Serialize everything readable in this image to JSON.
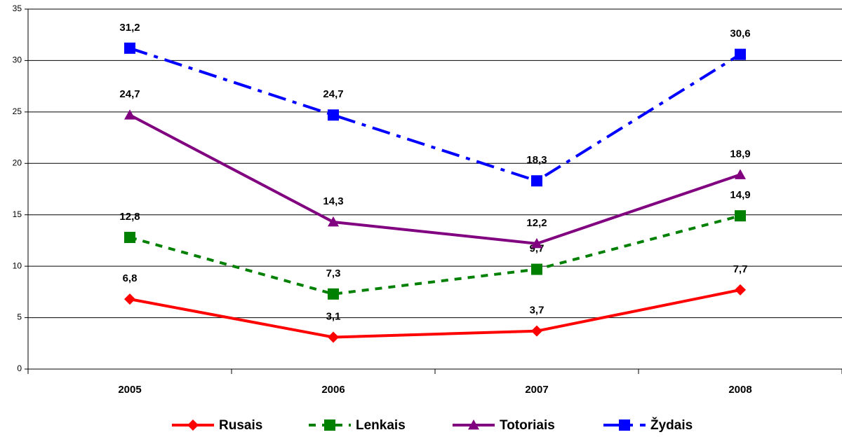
{
  "chart_data": {
    "type": "line",
    "categories": [
      "2005",
      "2006",
      "2007",
      "2008"
    ],
    "series": [
      {
        "name": "Rusais",
        "color": "#ff0000",
        "line_style": "solid",
        "marker": "diamond",
        "values": [
          6.8,
          3.1,
          3.7,
          7.7
        ],
        "value_labels": [
          "6,8",
          "3,1",
          "3,7",
          "7,7"
        ]
      },
      {
        "name": "Lenkais",
        "color": "#008000",
        "line_style": "dashed",
        "marker": "square",
        "values": [
          12.8,
          7.3,
          9.7,
          14.9
        ],
        "value_labels": [
          "12,8",
          "7,3",
          "9,7",
          "14,9"
        ]
      },
      {
        "name": "Totoriais",
        "color": "#800080",
        "line_style": "solid",
        "marker": "triangle",
        "values": [
          24.7,
          14.3,
          12.2,
          18.9
        ],
        "value_labels": [
          "24,7",
          "14,3",
          "12,2",
          "18,9"
        ]
      },
      {
        "name": "Žydais",
        "color": "#0000ff",
        "line_style": "dash-dot",
        "marker": "square",
        "values": [
          31.2,
          24.7,
          18.3,
          30.6
        ],
        "value_labels": [
          "31,2",
          "24,7",
          "18,3",
          "30,6"
        ]
      }
    ],
    "ylim": [
      0,
      35
    ],
    "yticks": [
      0,
      5,
      10,
      15,
      20,
      25,
      30,
      35
    ],
    "grid": true,
    "legend": "bottom"
  }
}
